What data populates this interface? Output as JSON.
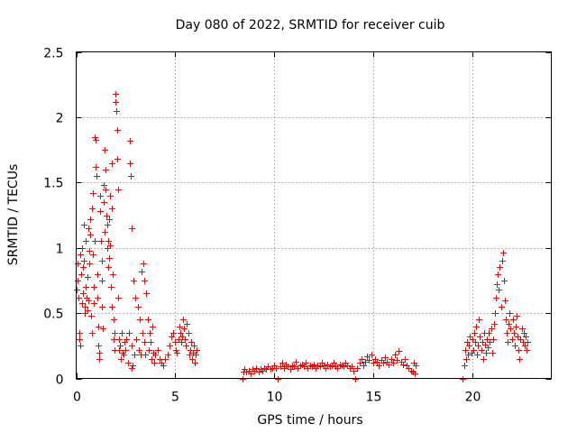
{
  "chart_data": {
    "type": "scatter",
    "title": "Day 080 of 2022, SRMTID for receiver cuib",
    "xlabel": "GPS time / hours",
    "ylabel": "SRMTID / TECUs",
    "xlim": [
      0,
      24
    ],
    "ylim": [
      0,
      2.5
    ],
    "x_ticks": [
      0,
      5,
      10,
      15,
      20
    ],
    "x_tick_labels": [
      "0",
      "5",
      "10",
      "15",
      "20"
    ],
    "y_ticks": [
      0,
      0.5,
      1,
      1.5,
      2,
      2.5
    ],
    "y_tick_labels": [
      "0",
      "0.5",
      "1",
      "1.5",
      "2",
      "2.5"
    ],
    "grid": true,
    "marker": "+",
    "color": "#ff0000",
    "series": [
      {
        "name": "SRMTID",
        "points": [
          [
            0.0,
            0.68
          ],
          [
            0.05,
            0.75
          ],
          [
            0.08,
            0.88
          ],
          [
            0.12,
            0.62
          ],
          [
            0.15,
            0.3
          ],
          [
            0.18,
            0.35
          ],
          [
            0.2,
            0.25
          ],
          [
            0.22,
            0.95
          ],
          [
            0.25,
            0.8
          ],
          [
            0.28,
            1.0
          ],
          [
            0.3,
            0.58
          ],
          [
            0.33,
            0.65
          ],
          [
            0.35,
            0.85
          ],
          [
            0.38,
            1.18
          ],
          [
            0.4,
            0.9
          ],
          [
            0.42,
            0.55
          ],
          [
            0.45,
            0.5
          ],
          [
            0.48,
            0.7
          ],
          [
            0.5,
            1.05
          ],
          [
            0.52,
            0.62
          ],
          [
            0.55,
            0.78
          ],
          [
            0.58,
            0.52
          ],
          [
            0.6,
            0.6
          ],
          [
            0.62,
            1.15
          ],
          [
            0.65,
            0.88
          ],
          [
            0.68,
            0.98
          ],
          [
            0.7,
            1.1
          ],
          [
            0.72,
            1.22
          ],
          [
            0.75,
            0.48
          ],
          [
            0.78,
            0.35
          ],
          [
            0.8,
            1.3
          ],
          [
            0.82,
            0.95
          ],
          [
            0.85,
            1.42
          ],
          [
            0.88,
            0.7
          ],
          [
            0.9,
            0.58
          ],
          [
            0.92,
            1.05
          ],
          [
            0.95,
            1.85
          ],
          [
            0.98,
            1.62
          ],
          [
            1.0,
            1.83
          ],
          [
            1.02,
            1.55
          ],
          [
            1.05,
            0.8
          ],
          [
            1.08,
            0.62
          ],
          [
            1.1,
            0.4
          ],
          [
            1.12,
            0.25
          ],
          [
            1.15,
            0.2
          ],
          [
            1.18,
            0.15
          ],
          [
            1.2,
            1.4
          ],
          [
            1.22,
            1.28
          ],
          [
            1.25,
            1.05
          ],
          [
            1.28,
            0.9
          ],
          [
            1.3,
            0.75
          ],
          [
            1.32,
            0.55
          ],
          [
            1.35,
            0.38
          ],
          [
            1.38,
            1.48
          ],
          [
            1.4,
            1.35
          ],
          [
            1.42,
            1.12
          ],
          [
            1.45,
            1.75
          ],
          [
            1.48,
            1.6
          ],
          [
            1.5,
            1.45
          ],
          [
            1.52,
            1.25
          ],
          [
            1.55,
            1.18
          ],
          [
            1.58,
            1.0
          ],
          [
            1.6,
            0.85
          ],
          [
            1.62,
            1.05
          ],
          [
            1.65,
            1.22
          ],
          [
            1.68,
            0.92
          ],
          [
            1.7,
            1.4
          ],
          [
            1.72,
            1.02
          ],
          [
            1.75,
            0.7
          ],
          [
            1.78,
            0.55
          ],
          [
            1.8,
            1.3
          ],
          [
            1.82,
            1.65
          ],
          [
            1.85,
            0.8
          ],
          [
            1.88,
            0.45
          ],
          [
            1.9,
            0.3
          ],
          [
            1.92,
            0.22
          ],
          [
            1.95,
            0.35
          ],
          [
            1.98,
            2.18
          ],
          [
            2.0,
            2.12
          ],
          [
            2.02,
            2.05
          ],
          [
            2.05,
            1.9
          ],
          [
            2.08,
            1.68
          ],
          [
            2.1,
            1.45
          ],
          [
            2.12,
            0.62
          ],
          [
            2.15,
            0.3
          ],
          [
            2.18,
            0.22
          ],
          [
            2.2,
            0.25
          ],
          [
            2.25,
            0.15
          ],
          [
            2.3,
            0.35
          ],
          [
            2.35,
            0.2
          ],
          [
            2.4,
            0.18
          ],
          [
            2.45,
            0.28
          ],
          [
            2.5,
            0.22
          ],
          [
            2.55,
            0.3
          ],
          [
            2.6,
            0.12
          ],
          [
            2.65,
            0.35
          ],
          [
            2.7,
            1.82
          ],
          [
            2.72,
            1.65
          ],
          [
            2.75,
            1.55
          ],
          [
            2.78,
            0.08
          ],
          [
            2.8,
            1.15
          ],
          [
            2.82,
            0.25
          ],
          [
            2.85,
            0.1
          ],
          [
            2.9,
            0.75
          ],
          [
            2.95,
            0.18
          ],
          [
            3.0,
            0.62
          ],
          [
            3.05,
            0.3
          ],
          [
            3.1,
            0.55
          ],
          [
            3.15,
            0.22
          ],
          [
            3.2,
            0.45
          ],
          [
            3.25,
            0.18
          ],
          [
            3.3,
            0.82
          ],
          [
            3.35,
            0.35
          ],
          [
            3.4,
            0.88
          ],
          [
            3.42,
            0.75
          ],
          [
            3.45,
            0.28
          ],
          [
            3.5,
            0.18
          ],
          [
            3.55,
            0.65
          ],
          [
            3.6,
            0.45
          ],
          [
            3.65,
            0.22
          ],
          [
            3.7,
            0.35
          ],
          [
            3.75,
            0.28
          ],
          [
            3.8,
            0.15
          ],
          [
            3.85,
            0.4
          ],
          [
            3.9,
            0.2
          ],
          [
            3.95,
            0.12
          ],
          [
            4.0,
            0.18
          ],
          [
            4.1,
            0.22
          ],
          [
            4.2,
            0.15
          ],
          [
            4.3,
            0.12
          ],
          [
            4.4,
            0.1
          ],
          [
            4.5,
            0.15
          ],
          [
            4.6,
            0.18
          ],
          [
            4.7,
            0.25
          ],
          [
            4.8,
            0.32
          ],
          [
            4.9,
            0.35
          ],
          [
            5.0,
            0.28
          ],
          [
            5.05,
            0.22
          ],
          [
            5.1,
            0.2
          ],
          [
            5.15,
            0.3
          ],
          [
            5.2,
            0.4
          ],
          [
            5.25,
            0.35
          ],
          [
            5.3,
            0.28
          ],
          [
            5.35,
            0.32
          ],
          [
            5.4,
            0.45
          ],
          [
            5.45,
            0.38
          ],
          [
            5.5,
            0.3
          ],
          [
            5.55,
            0.25
          ],
          [
            5.6,
            0.42
          ],
          [
            5.65,
            0.35
          ],
          [
            5.7,
            0.18
          ],
          [
            5.75,
            0.22
          ],
          [
            5.8,
            0.28
          ],
          [
            5.85,
            0.15
          ],
          [
            5.9,
            0.2
          ],
          [
            5.95,
            0.25
          ],
          [
            6.0,
            0.12
          ],
          [
            6.05,
            0.18
          ],
          [
            6.1,
            0.22
          ],
          [
            8.4,
            0.0
          ],
          [
            8.45,
            0.05
          ],
          [
            8.5,
            0.07
          ],
          [
            8.6,
            0.05
          ],
          [
            8.7,
            0.06
          ],
          [
            8.8,
            0.04
          ],
          [
            8.9,
            0.07
          ],
          [
            9.0,
            0.06
          ],
          [
            9.1,
            0.08
          ],
          [
            9.2,
            0.05
          ],
          [
            9.3,
            0.07
          ],
          [
            9.4,
            0.06
          ],
          [
            9.5,
            0.08
          ],
          [
            9.6,
            0.07
          ],
          [
            9.7,
            0.09
          ],
          [
            9.8,
            0.07
          ],
          [
            9.9,
            0.08
          ],
          [
            10.0,
            0.1
          ],
          [
            10.1,
            0.08
          ],
          [
            10.2,
            0.0
          ],
          [
            10.3,
            0.09
          ],
          [
            10.4,
            0.12
          ],
          [
            10.5,
            0.08
          ],
          [
            10.6,
            0.11
          ],
          [
            10.7,
            0.09
          ],
          [
            10.8,
            0.07
          ],
          [
            10.9,
            0.1
          ],
          [
            11.0,
            0.09
          ],
          [
            11.1,
            0.13
          ],
          [
            11.2,
            0.08
          ],
          [
            11.3,
            0.1
          ],
          [
            11.4,
            0.11
          ],
          [
            11.5,
            0.09
          ],
          [
            11.6,
            0.12
          ],
          [
            11.7,
            0.08
          ],
          [
            11.8,
            0.1
          ],
          [
            11.9,
            0.09
          ],
          [
            12.0,
            0.11
          ],
          [
            12.1,
            0.08
          ],
          [
            12.2,
            0.1
          ],
          [
            12.3,
            0.09
          ],
          [
            12.4,
            0.12
          ],
          [
            12.5,
            0.1
          ],
          [
            12.6,
            0.08
          ],
          [
            12.7,
            0.11
          ],
          [
            12.8,
            0.09
          ],
          [
            12.9,
            0.1
          ],
          [
            13.0,
            0.12
          ],
          [
            13.1,
            0.09
          ],
          [
            13.2,
            0.08
          ],
          [
            13.3,
            0.11
          ],
          [
            13.4,
            0.1
          ],
          [
            13.5,
            0.09
          ],
          [
            13.6,
            0.12
          ],
          [
            13.7,
            0.1
          ],
          [
            13.8,
            0.08
          ],
          [
            13.9,
            0.09
          ],
          [
            14.0,
            0.06
          ],
          [
            14.1,
            0.0
          ],
          [
            14.2,
            0.08
          ],
          [
            14.3,
            0.12
          ],
          [
            14.4,
            0.15
          ],
          [
            14.5,
            0.1
          ],
          [
            14.6,
            0.13
          ],
          [
            14.7,
            0.17
          ],
          [
            14.8,
            0.14
          ],
          [
            14.9,
            0.18
          ],
          [
            15.0,
            0.12
          ],
          [
            15.1,
            0.15
          ],
          [
            15.2,
            0.13
          ],
          [
            15.3,
            0.1
          ],
          [
            15.4,
            0.14
          ],
          [
            15.5,
            0.12
          ],
          [
            15.6,
            0.16
          ],
          [
            15.7,
            0.13
          ],
          [
            15.8,
            0.11
          ],
          [
            15.9,
            0.15
          ],
          [
            16.0,
            0.12
          ],
          [
            16.1,
            0.18
          ],
          [
            16.2,
            0.14
          ],
          [
            16.3,
            0.21
          ],
          [
            16.4,
            0.13
          ],
          [
            16.5,
            0.11
          ],
          [
            16.6,
            0.15
          ],
          [
            16.7,
            0.1
          ],
          [
            16.8,
            0.08
          ],
          [
            16.9,
            0.06
          ],
          [
            17.0,
            0.05
          ],
          [
            17.05,
            0.12
          ],
          [
            17.1,
            0.04
          ],
          [
            17.15,
            0.1
          ],
          [
            19.5,
            0.0
          ],
          [
            19.6,
            0.1
          ],
          [
            19.65,
            0.22
          ],
          [
            19.7,
            0.15
          ],
          [
            19.75,
            0.28
          ],
          [
            19.8,
            0.18
          ],
          [
            19.85,
            0.25
          ],
          [
            19.9,
            0.32
          ],
          [
            19.95,
            0.2
          ],
          [
            20.0,
            0.3
          ],
          [
            20.05,
            0.22
          ],
          [
            20.1,
            0.35
          ],
          [
            20.15,
            0.28
          ],
          [
            20.2,
            0.4
          ],
          [
            20.25,
            0.18
          ],
          [
            20.3,
            0.25
          ],
          [
            20.35,
            0.45
          ],
          [
            20.4,
            0.32
          ],
          [
            20.45,
            0.22
          ],
          [
            20.5,
            0.28
          ],
          [
            20.55,
            0.15
          ],
          [
            20.6,
            0.35
          ],
          [
            20.65,
            0.26
          ],
          [
            20.7,
            0.2
          ],
          [
            20.75,
            0.3
          ],
          [
            20.8,
            0.24
          ],
          [
            20.85,
            0.35
          ],
          [
            20.9,
            0.28
          ],
          [
            20.95,
            0.38
          ],
          [
            21.0,
            0.2
          ],
          [
            21.05,
            0.3
          ],
          [
            21.1,
            0.42
          ],
          [
            21.15,
            0.5
          ],
          [
            21.2,
            0.62
          ],
          [
            21.25,
            0.72
          ],
          [
            21.3,
            0.8
          ],
          [
            21.35,
            0.68
          ],
          [
            21.4,
            0.85
          ],
          [
            21.45,
            0.55
          ],
          [
            21.5,
            0.9
          ],
          [
            21.55,
            0.96
          ],
          [
            21.6,
            0.75
          ],
          [
            21.65,
            0.6
          ],
          [
            21.7,
            0.45
          ],
          [
            21.75,
            0.35
          ],
          [
            21.8,
            0.28
          ],
          [
            21.85,
            0.42
          ],
          [
            21.9,
            0.5
          ],
          [
            21.95,
            0.38
          ],
          [
            22.0,
            0.3
          ],
          [
            22.05,
            0.45
          ],
          [
            22.1,
            0.35
          ],
          [
            22.15,
            0.25
          ],
          [
            22.2,
            0.4
          ],
          [
            22.25,
            0.48
          ],
          [
            22.3,
            0.32
          ],
          [
            22.35,
            0.22
          ],
          [
            22.4,
            0.15
          ],
          [
            22.45,
            0.3
          ],
          [
            22.5,
            0.38
          ],
          [
            22.55,
            0.28
          ],
          [
            22.6,
            0.35
          ],
          [
            22.65,
            0.25
          ],
          [
            22.7,
            0.32
          ],
          [
            22.75,
            0.22
          ],
          [
            22.8,
            0.28
          ]
        ]
      }
    ]
  }
}
